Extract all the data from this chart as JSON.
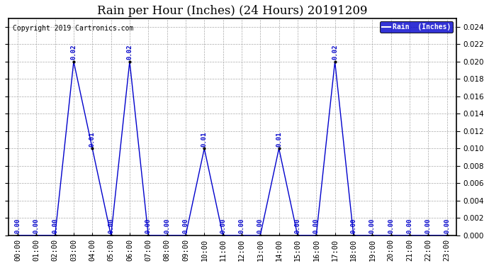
{
  "title": "Rain per Hour (Inches) (24 Hours) 20191209",
  "copyright_text": "Copyright 2019 Cartronics.com",
  "legend_label": "Rain  (Inches)",
  "hours": [
    0,
    1,
    2,
    3,
    4,
    5,
    6,
    7,
    8,
    9,
    10,
    11,
    12,
    13,
    14,
    15,
    16,
    17,
    18,
    19,
    20,
    21,
    22,
    23
  ],
  "values": [
    0.0,
    0.0,
    0.0,
    0.02,
    0.01,
    0.0,
    0.02,
    0.0,
    0.0,
    0.0,
    0.01,
    0.0,
    0.0,
    0.0,
    0.01,
    0.0,
    0.0,
    0.02,
    0.0,
    0.0,
    0.0,
    0.0,
    0.0,
    0.0
  ],
  "line_color": "#0000CC",
  "marker_color": "#000000",
  "bg_color": "#FFFFFF",
  "plot_bg_color": "#FFFFFF",
  "grid_color": "#AAAAAA",
  "ylim": [
    0.0,
    0.025
  ],
  "yticks": [
    0.0,
    0.002,
    0.004,
    0.006,
    0.008,
    0.01,
    0.012,
    0.014,
    0.016,
    0.018,
    0.02,
    0.022,
    0.024
  ],
  "title_fontsize": 12,
  "annotation_fontsize": 6.5,
  "tick_fontsize": 7.5,
  "legend_bg_color": "#0000CC",
  "legend_text_color": "#FFFFFF",
  "copyright_fontsize": 7
}
